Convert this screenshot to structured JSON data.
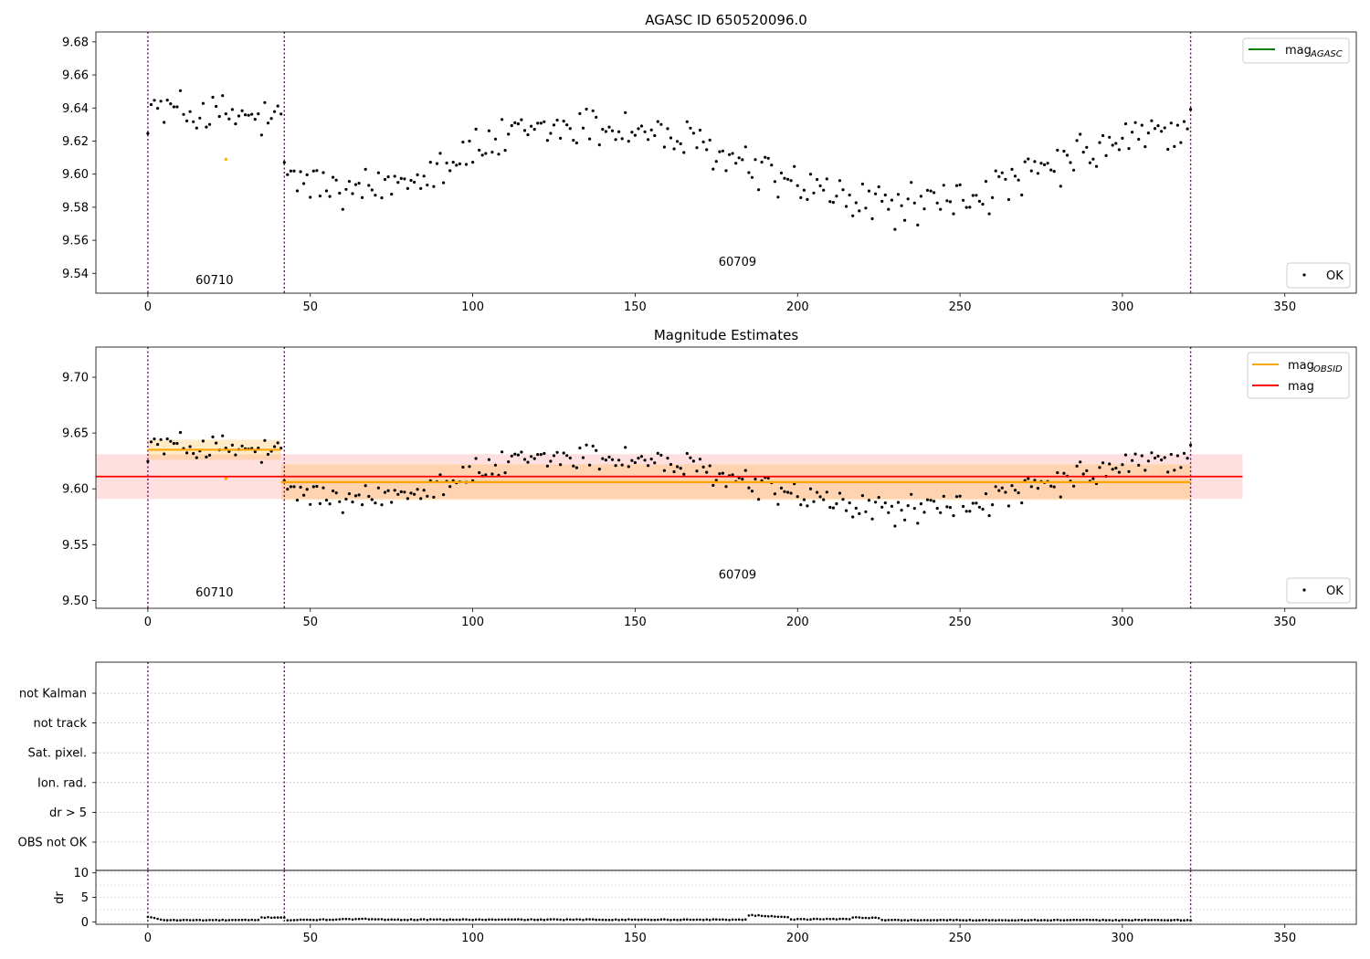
{
  "figure": {
    "subplot1_title": "AGASC ID 650520096.0",
    "subplot2_title": "Magnitude Estimates"
  },
  "chart_data": [
    {
      "type": "scatter",
      "title": "AGASC ID 650520096.0",
      "xlabel": "",
      "ylabel": "",
      "xlim": [
        -16,
        372
      ],
      "ylim": [
        9.528,
        9.686
      ],
      "x_ticks": [
        0,
        50,
        100,
        150,
        200,
        250,
        300,
        350
      ],
      "y_ticks": [
        9.54,
        9.56,
        9.58,
        9.6,
        9.62,
        9.64,
        9.66,
        9.68
      ],
      "y_decimals": 2,
      "grid": false,
      "legend": [
        {
          "label": "mag",
          "subscript": "AGASC",
          "kind": "line",
          "color": "#008000",
          "placement": "top-right"
        },
        {
          "label": "OK",
          "kind": "point",
          "color": "#000000",
          "placement": "bottom-right"
        }
      ],
      "obsid_boundaries": [
        0,
        42,
        321
      ],
      "obsid_labels": [
        {
          "text": "60710",
          "x": 20.5,
          "y": 9.5335
        },
        {
          "text": "60709",
          "x": 181.5,
          "y": 9.5445
        }
      ],
      "series": [
        {
          "role": "ok_points",
          "color": "#000000"
        },
        {
          "role": "flagged",
          "color": "#ffa500",
          "x": [
            24
          ],
          "y": [
            9.609
          ]
        }
      ]
    },
    {
      "type": "scatter",
      "title": "Magnitude Estimates",
      "xlabel": "",
      "ylabel": "",
      "xlim": [
        -16,
        372
      ],
      "ylim": [
        9.493,
        9.727
      ],
      "x_ticks": [
        0,
        50,
        100,
        150,
        200,
        250,
        300,
        350
      ],
      "y_ticks": [
        9.5,
        9.55,
        9.6,
        9.65,
        9.7
      ],
      "y_decimals": 2,
      "grid": false,
      "legend": [
        {
          "label": "mag",
          "subscript": "OBSID",
          "kind": "line",
          "color": "#ffa500",
          "placement": "top-right"
        },
        {
          "label": "mag",
          "subscript": "",
          "kind": "line",
          "color": "#ff0000",
          "placement": "top-right"
        },
        {
          "label": "OK",
          "kind": "point",
          "color": "#000000",
          "placement": "bottom-right"
        }
      ],
      "obsid_boundaries": [
        0,
        42,
        321
      ],
      "obsid_labels": [
        {
          "text": "60710",
          "x": 20.5,
          "y": 9.5035
        },
        {
          "text": "60709",
          "x": 181.5,
          "y": 9.5195
        }
      ],
      "mag_total": {
        "value": 9.611,
        "band": [
          9.591,
          9.631
        ],
        "x_range": [
          -16,
          337
        ],
        "color": "#ff0000"
      },
      "mag_obsid": [
        {
          "obsid": "60710",
          "value": 9.635,
          "band": [
            9.626,
            9.644
          ],
          "x_range": [
            0,
            41
          ]
        },
        {
          "obsid": "60709",
          "value": 9.606,
          "band": [
            9.59,
            9.622
          ],
          "x_range": [
            41,
            321
          ]
        }
      ],
      "series": [
        {
          "role": "ok_points",
          "color": "#000000"
        },
        {
          "role": "flagged",
          "color": "#ffa500",
          "x": [
            24
          ],
          "y": [
            9.609
          ]
        }
      ]
    },
    {
      "type": "scatter",
      "title": "",
      "xlabel": "",
      "ylabel": "",
      "xlim": [
        -16,
        372
      ],
      "categories": [
        "not Kalman",
        "not track",
        "Sat. pixel.",
        "Ion. rad.",
        "dr > 5",
        "OBS not OK"
      ],
      "grid": true,
      "obsid_boundaries": [
        0,
        42,
        321
      ]
    },
    {
      "type": "scatter",
      "title": "",
      "xlabel": "",
      "ylabel": "dr",
      "xlim": [
        -16,
        372
      ],
      "ylim": [
        -0.5,
        10.5
      ],
      "x_ticks": [
        0,
        50,
        100,
        150,
        200,
        250,
        300,
        350
      ],
      "y_ticks": [
        0,
        5,
        10
      ],
      "grid": true,
      "obsid_boundaries": [
        0,
        42,
        321
      ],
      "dr_segments": [
        {
          "x": [
            0,
            4
          ],
          "y": [
            1.0,
            0.5
          ]
        },
        {
          "x": [
            5,
            34
          ],
          "y": [
            0.35,
            0.35
          ]
        },
        {
          "x": [
            35,
            42
          ],
          "y": [
            0.9,
            0.9
          ]
        },
        {
          "x": [
            43,
            72
          ],
          "y": [
            0.35,
            0.6
          ]
        },
        {
          "x": [
            73,
            184
          ],
          "y": [
            0.45,
            0.45
          ]
        },
        {
          "x": [
            185,
            197
          ],
          "y": [
            1.35,
            1.0
          ]
        },
        {
          "x": [
            198,
            216
          ],
          "y": [
            0.5,
            0.6
          ]
        },
        {
          "x": [
            217,
            225
          ],
          "y": [
            0.9,
            0.8
          ]
        },
        {
          "x": [
            226,
            321
          ],
          "y": [
            0.35,
            0.35
          ]
        }
      ]
    }
  ]
}
